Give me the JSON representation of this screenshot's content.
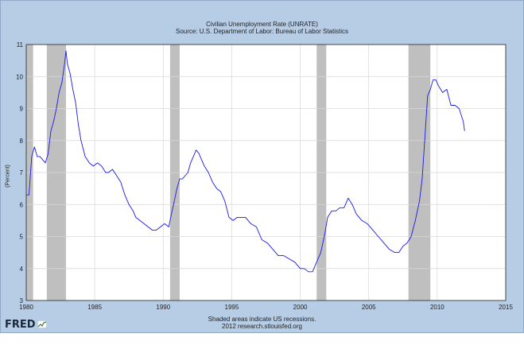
{
  "chart_data": {
    "type": "line",
    "title": "Civilian Unemployment Rate (UNRATE)",
    "subtitle": "Source: U.S. Department of Labor: Bureau of Labor Statistics",
    "ylabel": "(Percent)",
    "xlabel": "",
    "xlim": [
      1980,
      2015
    ],
    "ylim": [
      3,
      11
    ],
    "x_ticks": [
      "1980",
      "1985",
      "1990",
      "1995",
      "2000",
      "2005",
      "2010",
      "2015"
    ],
    "y_ticks": [
      "3",
      "4",
      "5",
      "6",
      "7",
      "8",
      "9",
      "10",
      "11"
    ],
    "grid": true,
    "line_color": "#1a1ae6",
    "recessions": [
      [
        1980.0,
        1980.5
      ],
      [
        1981.5,
        1982.9
      ],
      [
        1990.5,
        1991.2
      ],
      [
        2001.2,
        2001.9
      ],
      [
        2007.9,
        2009.5
      ]
    ],
    "series": [
      {
        "x": [
          1980.0,
          1980.2,
          1980.4,
          1980.6,
          1980.8,
          1981.0,
          1981.2,
          1981.4,
          1981.6,
          1981.8,
          1982.0,
          1982.2,
          1982.4,
          1982.6,
          1982.8,
          1982.9,
          1983.0,
          1983.2,
          1983.4,
          1983.6,
          1983.8,
          1984.0,
          1984.3,
          1984.6,
          1984.9,
          1985.2,
          1985.5,
          1985.8,
          1986.0,
          1986.3,
          1986.6,
          1986.9,
          1987.2,
          1987.5,
          1987.8,
          1988.0,
          1988.3,
          1988.6,
          1988.9,
          1989.2,
          1989.5,
          1989.8,
          1990.1,
          1990.4,
          1990.6,
          1990.8,
          1991.0,
          1991.2,
          1991.4,
          1991.6,
          1991.8,
          1992.0,
          1992.2,
          1992.4,
          1992.6,
          1992.8,
          1993.0,
          1993.3,
          1993.6,
          1993.9,
          1994.2,
          1994.5,
          1994.8,
          1995.1,
          1995.4,
          1995.7,
          1996.0,
          1996.4,
          1996.8,
          1997.2,
          1997.6,
          1998.0,
          1998.4,
          1998.8,
          1999.2,
          1999.6,
          2000.0,
          2000.3,
          2000.6,
          2000.9,
          2001.2,
          2001.5,
          2001.8,
          2002.0,
          2002.3,
          2002.6,
          2002.9,
          2003.2,
          2003.5,
          2003.8,
          2004.1,
          2004.5,
          2004.9,
          2005.3,
          2005.7,
          2006.1,
          2006.5,
          2006.9,
          2007.2,
          2007.5,
          2007.8,
          2008.1,
          2008.4,
          2008.7,
          2008.9,
          2009.1,
          2009.3,
          2009.5,
          2009.7,
          2009.9,
          2010.1,
          2010.4,
          2010.7,
          2011.0,
          2011.3,
          2011.6,
          2011.9,
          2012.0
        ],
        "values": [
          6.3,
          6.3,
          7.5,
          7.8,
          7.5,
          7.5,
          7.4,
          7.3,
          7.6,
          8.3,
          8.6,
          9.0,
          9.5,
          9.8,
          10.4,
          10.8,
          10.4,
          10.1,
          9.6,
          9.2,
          8.5,
          8.0,
          7.5,
          7.3,
          7.2,
          7.3,
          7.2,
          7.0,
          7.0,
          7.1,
          6.9,
          6.7,
          6.3,
          6.0,
          5.8,
          5.6,
          5.5,
          5.4,
          5.3,
          5.2,
          5.2,
          5.3,
          5.4,
          5.3,
          5.7,
          6.1,
          6.5,
          6.8,
          6.8,
          6.9,
          7.0,
          7.3,
          7.5,
          7.7,
          7.6,
          7.4,
          7.2,
          7.0,
          6.7,
          6.5,
          6.4,
          6.1,
          5.6,
          5.5,
          5.6,
          5.6,
          5.6,
          5.4,
          5.3,
          4.9,
          4.8,
          4.6,
          4.4,
          4.4,
          4.3,
          4.2,
          4.0,
          4.0,
          3.9,
          3.9,
          4.2,
          4.5,
          5.1,
          5.6,
          5.8,
          5.8,
          5.9,
          5.9,
          6.2,
          6.0,
          5.7,
          5.5,
          5.4,
          5.2,
          5.0,
          4.8,
          4.6,
          4.5,
          4.5,
          4.7,
          4.8,
          5.0,
          5.5,
          6.1,
          6.8,
          8.1,
          9.4,
          9.6,
          9.9,
          9.9,
          9.7,
          9.5,
          9.6,
          9.1,
          9.1,
          9.0,
          8.6,
          8.3
        ]
      }
    ],
    "note_line1": "Shaded areas indicate US recessions.",
    "note_line2": "2012 research.stlouisfed.org"
  },
  "logo": {
    "text": "FRED",
    "icon": "fred-chart-icon"
  },
  "colors": {
    "frame": "#b7cde6",
    "plot_bg": "#ffffff",
    "recession": "#bfbfbf",
    "grid": "#d8d8d8"
  }
}
